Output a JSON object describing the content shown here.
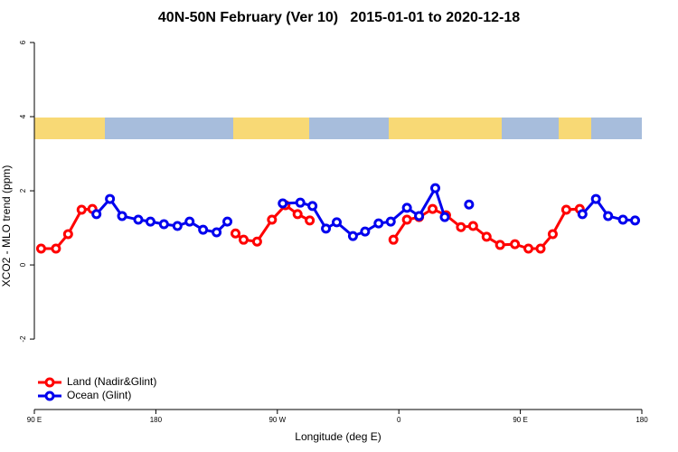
{
  "chart_data": {
    "type": "line",
    "title": "40N-50N February (Ver 10)   2015-01-01 to 2020-12-18",
    "xlabel": "Longitude (deg E)",
    "ylabel": "XCO2 - MLO trend (ppm)",
    "xlim": [
      90,
      540
    ],
    "xticks": [
      {
        "value": 90,
        "label": "90 E"
      },
      180,
      {
        "value": 270,
        "label": "90 W"
      },
      {
        "value": 360,
        "label": "0"
      },
      {
        "value": 450,
        "label": "90 E"
      },
      {
        "value": 540,
        "label": "180"
      }
    ],
    "ylim": [
      -3.9,
      6.22
    ],
    "yticks": [
      -2,
      0,
      2,
      4,
      6
    ],
    "legend": "bottom-left",
    "series": [
      {
        "name": "Land (Nadir&Glint)",
        "color": "#ff0000",
        "x": [
          95,
          106,
          115,
          125,
          133,
          null,
          239,
          245,
          255,
          266,
          276,
          285,
          294,
          null,
          356,
          366,
          375,
          385,
          395,
          406,
          415,
          425,
          435,
          446,
          456,
          465,
          474,
          484,
          494
        ],
        "values": [
          0.44,
          0.44,
          0.83,
          1.49,
          1.51,
          null,
          0.85,
          0.68,
          0.63,
          1.22,
          1.61,
          1.37,
          1.2,
          null,
          0.68,
          1.22,
          1.29,
          1.51,
          1.34,
          1.02,
          1.05,
          0.76,
          0.54,
          0.56,
          0.44,
          0.44,
          0.83,
          1.49,
          1.51
        ]
      },
      {
        "name": "Ocean (Glint)",
        "color": "#0000ee",
        "x": [
          136,
          146,
          155,
          167,
          176,
          186,
          196,
          205,
          215,
          225,
          233,
          null,
          274,
          287,
          296,
          306,
          314,
          326,
          335,
          345,
          354,
          366,
          375,
          387,
          394,
          null,
          412,
          null,
          496,
          506,
          515,
          526,
          535
        ],
        "values": [
          1.37,
          1.78,
          1.32,
          1.22,
          1.17,
          1.1,
          1.05,
          1.17,
          0.95,
          0.88,
          1.17,
          null,
          1.66,
          1.68,
          1.59,
          0.98,
          1.15,
          0.78,
          0.9,
          1.12,
          1.17,
          1.54,
          1.32,
          2.07,
          1.29,
          null,
          1.63,
          null,
          1.37,
          1.78,
          1.32,
          1.22,
          1.2
        ]
      }
    ]
  }
}
